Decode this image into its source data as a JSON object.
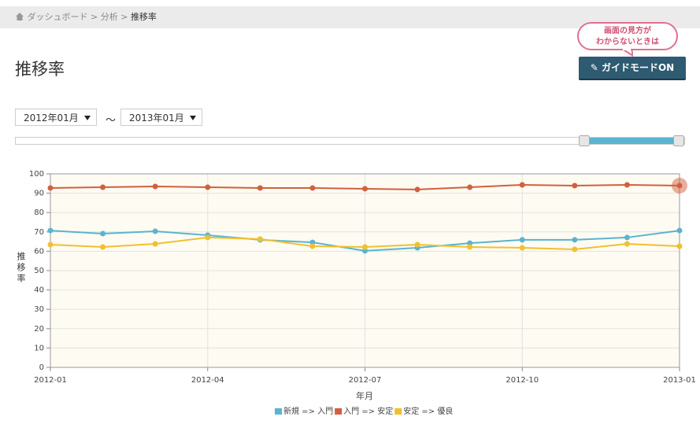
{
  "breadcrumb": {
    "items": [
      "ダッシュボード",
      "分析",
      "推移率"
    ],
    "separator": ">"
  },
  "page_title": "推移率",
  "guide": {
    "bubble_lines": [
      "画面の見方が",
      "わからないときは"
    ],
    "button": "ガイドモードON"
  },
  "date_range": {
    "from": "2012年01月",
    "separator": "～",
    "to": "2013年01月"
  },
  "chart_data": {
    "type": "line",
    "y_label": "推移率",
    "x_label": "年月",
    "categories": [
      "2012-01",
      null,
      null,
      "2012-04",
      null,
      null,
      "2012-07",
      null,
      null,
      "2012-10",
      null,
      null,
      "2013-01"
    ],
    "series": [
      {
        "name": "新規 => 入門",
        "color": "#5ab4cf",
        "values": [
          70.7,
          69.1,
          70.3,
          68.3,
          65.9,
          64.6,
          60.2,
          61.8,
          64.2,
          65.9,
          65.9,
          67.1,
          70.7
        ]
      },
      {
        "name": "入門 => 安定",
        "color": "#d2603f",
        "values": [
          92.7,
          93.1,
          93.5,
          93.1,
          92.7,
          92.7,
          92.3,
          91.9,
          93.1,
          94.3,
          93.9,
          94.3,
          93.9
        ]
      },
      {
        "name": "安定 => 優良",
        "color": "#f0c030",
        "values": [
          63.4,
          62.2,
          63.8,
          67.1,
          66.3,
          62.6,
          62.2,
          63.4,
          62.2,
          61.8,
          61.0,
          63.8,
          62.6
        ]
      }
    ],
    "ylim": [
      0,
      100
    ],
    "yticks": [
      0,
      10,
      20,
      30,
      40,
      50,
      60,
      70,
      80,
      90,
      100
    ],
    "grid": true
  }
}
